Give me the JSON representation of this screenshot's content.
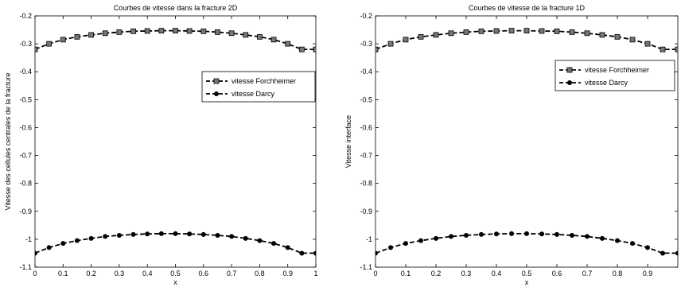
{
  "chart_data": [
    {
      "type": "line",
      "title": "Courbes de vitesse dans la fracture 2D",
      "xlabel": "x",
      "ylabel": "Vitesse des cellules centrales de la fracture",
      "xlim": [
        0,
        1
      ],
      "ylim": [
        -1.1,
        -0.2
      ],
      "y_reversed": true,
      "grid": false,
      "legend_position": "center-right",
      "xticks": [
        "0",
        "0.1",
        "0.2",
        "0.3",
        "0.4",
        "0.5",
        "0.6",
        "0.7",
        "0.8",
        "0.9",
        "1"
      ],
      "yticks": [
        "-0.2",
        "-0.3",
        "-0.4",
        "-0.5",
        "-0.6",
        "-0.7",
        "-0.8",
        "-0.9",
        "-1",
        "-1.1"
      ],
      "x": [
        0,
        0.05,
        0.1,
        0.15,
        0.2,
        0.25,
        0.3,
        0.35,
        0.4,
        0.45,
        0.5,
        0.55,
        0.6,
        0.65,
        0.7,
        0.75,
        0.8,
        0.85,
        0.9,
        0.95,
        1
      ],
      "series": [
        {
          "name": "vitesse Forchheimer",
          "marker": "square",
          "values": [
            -0.32,
            -0.3,
            -0.285,
            -0.275,
            -0.268,
            -0.262,
            -0.258,
            -0.255,
            -0.254,
            -0.253,
            -0.253,
            -0.254,
            -0.255,
            -0.258,
            -0.262,
            -0.268,
            -0.275,
            -0.285,
            -0.3,
            -0.32,
            -0.32
          ]
        },
        {
          "name": "vitesse Darcy",
          "marker": "circle",
          "values": [
            -1.05,
            -1.03,
            -1.015,
            -1.005,
            -0.997,
            -0.99,
            -0.986,
            -0.983,
            -0.981,
            -0.98,
            -0.98,
            -0.981,
            -0.983,
            -0.986,
            -0.99,
            -0.997,
            -1.005,
            -1.015,
            -1.03,
            -1.05,
            -1.05
          ]
        }
      ]
    },
    {
      "type": "line",
      "title": "Courbes de vitesse de la fracture 1D",
      "xlabel": "x",
      "ylabel": "Vitesse interface",
      "xlim": [
        0,
        1
      ],
      "ylim": [
        -1.1,
        -0.2
      ],
      "y_reversed": true,
      "grid": false,
      "legend_position": "top-right",
      "xticks": [
        "0",
        "0.1",
        "0.2",
        "0.3",
        "0.4",
        "0.5",
        "0.6",
        "0.7",
        "0.8",
        "0.9"
      ],
      "yticks": [
        "-0.2",
        "-0.3",
        "-0.4",
        "-0.5",
        "-0.6",
        "-0.7",
        "-0.8",
        "-0.9",
        "-1",
        "-1.1"
      ],
      "x": [
        0,
        0.05,
        0.1,
        0.15,
        0.2,
        0.25,
        0.3,
        0.35,
        0.4,
        0.45,
        0.5,
        0.55,
        0.6,
        0.65,
        0.7,
        0.75,
        0.8,
        0.85,
        0.9,
        0.95,
        1
      ],
      "series": [
        {
          "name": "vitesse Forchheimer",
          "marker": "square",
          "values": [
            -0.32,
            -0.3,
            -0.285,
            -0.275,
            -0.268,
            -0.262,
            -0.258,
            -0.255,
            -0.254,
            -0.253,
            -0.253,
            -0.254,
            -0.255,
            -0.258,
            -0.262,
            -0.268,
            -0.275,
            -0.285,
            -0.3,
            -0.32,
            -0.32
          ]
        },
        {
          "name": "vitesse Darcy",
          "marker": "circle",
          "values": [
            -1.05,
            -1.03,
            -1.015,
            -1.005,
            -0.997,
            -0.99,
            -0.986,
            -0.983,
            -0.981,
            -0.98,
            -0.98,
            -0.981,
            -0.983,
            -0.986,
            -0.99,
            -0.997,
            -1.005,
            -1.015,
            -1.03,
            -1.05,
            -1.05
          ]
        }
      ]
    }
  ]
}
